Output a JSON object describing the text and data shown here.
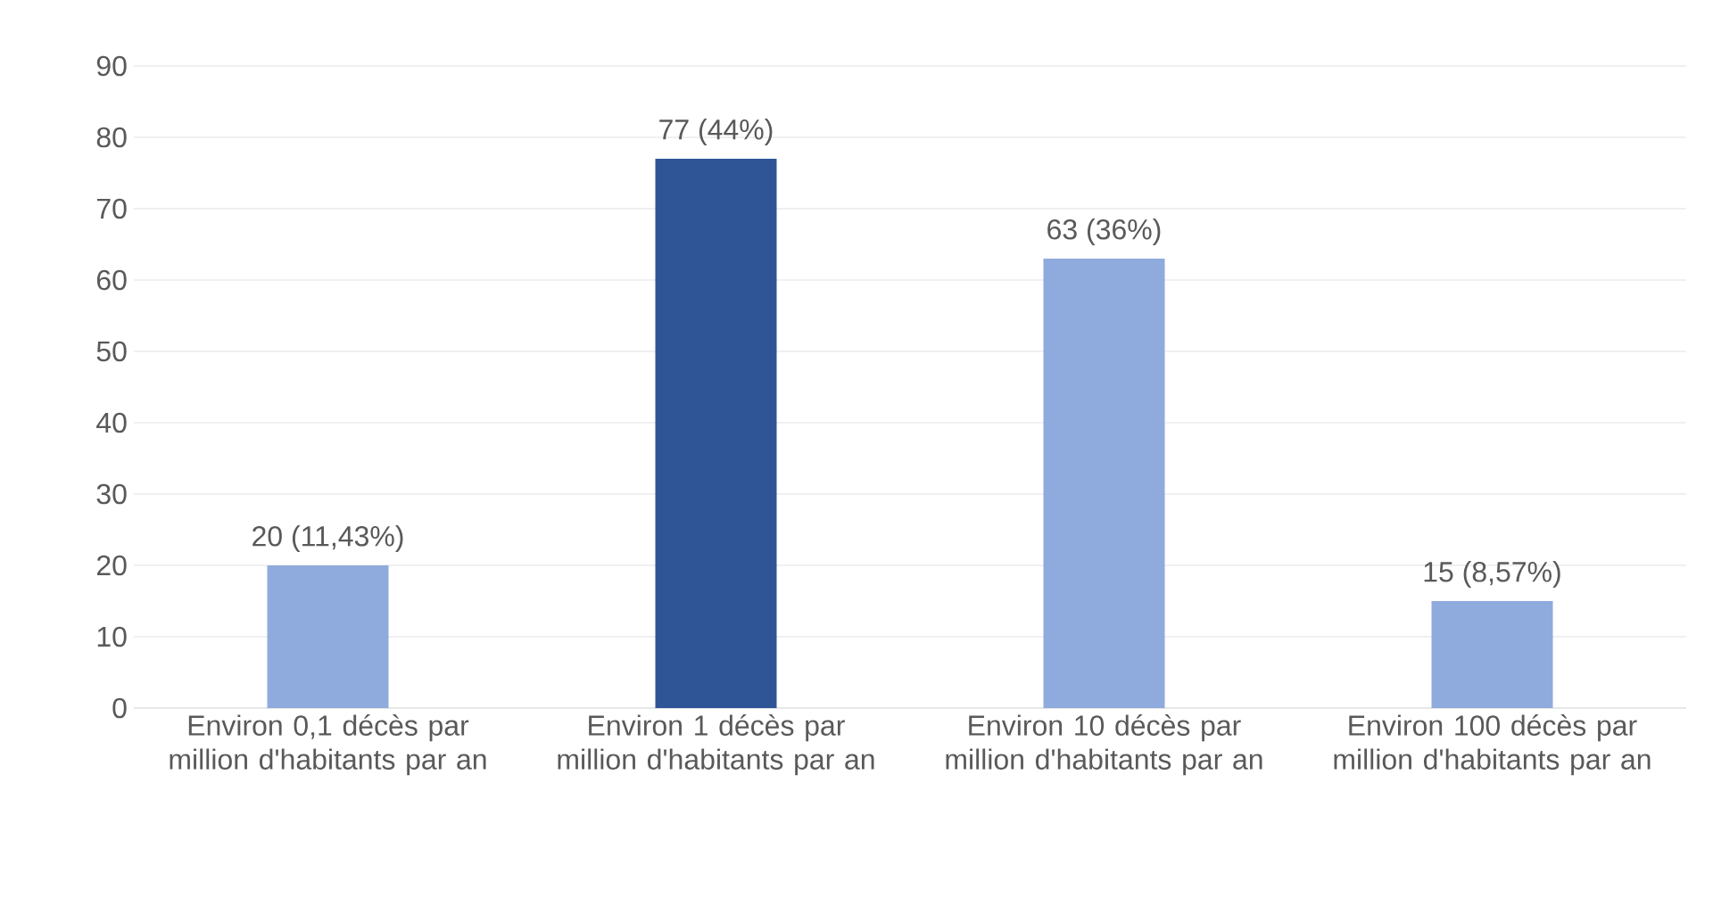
{
  "chart_data": {
    "type": "bar",
    "categories": [
      "Environ 0,1 décès par million d'habitants par an",
      "Environ 1 décès par million d'habitants par an",
      "Environ 10 décès par million d'habitants par an",
      "Environ 100 décès par million d'habitants par an"
    ],
    "values": [
      20,
      77,
      63,
      15
    ],
    "colors": [
      "#8faadc",
      "#2f5597",
      "#8faadc",
      "#8faadc"
    ],
    "value_labels": [
      "20 (11,43%)",
      "77 (44%)",
      "63 (36%)",
      "15 (8,57%)"
    ],
    "ylim": [
      0,
      90
    ],
    "yticks": [
      0,
      10,
      20,
      30,
      40,
      50,
      60,
      70,
      80,
      90
    ],
    "grid": "y"
  }
}
